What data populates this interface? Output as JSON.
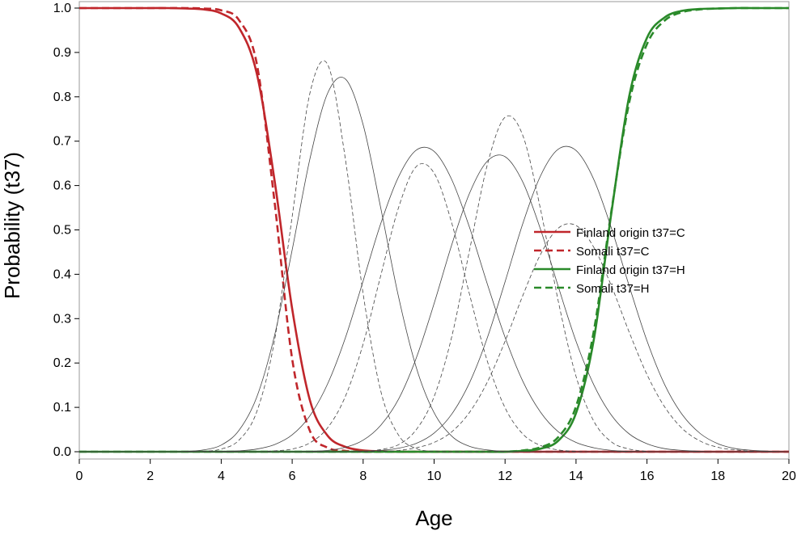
{
  "chart_data": {
    "type": "line",
    "title": "",
    "xlabel": "Age",
    "ylabel": "Probability (t37)",
    "xlim": [
      0,
      20
    ],
    "ylim": [
      0,
      1
    ],
    "xticks": [
      "0",
      "2",
      "4",
      "6",
      "8",
      "10",
      "12",
      "14",
      "16",
      "18",
      "20"
    ],
    "yticks": [
      "0.0",
      "0.1",
      "0.2",
      "0.3",
      "0.4",
      "0.5",
      "0.6",
      "0.7",
      "0.8",
      "0.9",
      "1.0"
    ],
    "grid": false,
    "legend_position": "center-right",
    "x": [
      0,
      0.5,
      1,
      1.5,
      2,
      2.5,
      3,
      3.5,
      4,
      4.5,
      5,
      5.5,
      6,
      6.5,
      7,
      7.5,
      8,
      8.5,
      9,
      9.5,
      10,
      10.5,
      11,
      11.5,
      12,
      12.5,
      13,
      13.5,
      14,
      14.5,
      15,
      15.5,
      16,
      16.5,
      17,
      17.5,
      18,
      18.5,
      19,
      19.5,
      20
    ],
    "series": [
      {
        "name": "Finland origin t37=C",
        "color": "#c0262b",
        "style": "solid",
        "weight": "bold",
        "values": [
          1.0,
          1.0,
          1.0,
          1.0,
          1.0,
          1.0,
          0.999,
          0.997,
          0.988,
          0.956,
          0.853,
          0.613,
          0.322,
          0.116,
          0.036,
          0.011,
          0.003,
          0.001,
          0.0,
          0.0,
          0.0,
          0.0,
          0.0,
          0.0,
          0.0,
          0.0,
          0.0,
          0.0,
          0.0,
          0.0,
          0.0,
          0.0,
          0.0,
          0.0,
          0.0,
          0.0,
          0.0,
          0.0,
          0.0,
          0.0,
          0.0
        ]
      },
      {
        "name": "Somali t37=C",
        "color": "#c0262b",
        "style": "dashed",
        "weight": "bold",
        "values": [
          1.0,
          1.0,
          1.0,
          1.0,
          1.0,
          1.0,
          1.0,
          0.999,
          0.995,
          0.973,
          0.875,
          0.565,
          0.209,
          0.047,
          0.009,
          0.002,
          0.0,
          0.0,
          0.0,
          0.0,
          0.0,
          0.0,
          0.0,
          0.0,
          0.0,
          0.0,
          0.0,
          0.0,
          0.0,
          0.0,
          0.0,
          0.0,
          0.0,
          0.0,
          0.0,
          0.0,
          0.0,
          0.0,
          0.0,
          0.0,
          0.0
        ]
      },
      {
        "name": "Finland origin t37=H",
        "color": "#2a8a2a",
        "style": "solid",
        "weight": "bold",
        "values": [
          0.0,
          0.0,
          0.0,
          0.0,
          0.0,
          0.0,
          0.0,
          0.0,
          0.0,
          0.0,
          0.0,
          0.0,
          0.0,
          0.0,
          0.0,
          0.0,
          0.0,
          0.0,
          0.0,
          0.0,
          0.0,
          0.0,
          0.0,
          0.0,
          0.0,
          0.002,
          0.007,
          0.025,
          0.087,
          0.252,
          0.541,
          0.802,
          0.933,
          0.979,
          0.994,
          0.998,
          0.999,
          1.0,
          1.0,
          1.0,
          1.0
        ]
      },
      {
        "name": "Somali t37=H",
        "color": "#2a8a2a",
        "style": "dashed",
        "weight": "bold",
        "values": [
          0.0,
          0.0,
          0.0,
          0.0,
          0.0,
          0.0,
          0.0,
          0.0,
          0.0,
          0.0,
          0.0,
          0.0,
          0.0,
          0.0,
          0.0,
          0.0,
          0.0,
          0.0,
          0.0,
          0.0,
          0.0,
          0.0,
          0.0,
          0.0,
          0.0,
          0.003,
          0.01,
          0.033,
          0.102,
          0.271,
          0.545,
          0.788,
          0.919,
          0.972,
          0.991,
          0.997,
          0.999,
          1.0,
          1.0,
          1.0,
          1.0
        ]
      },
      {
        "color": "#444444",
        "style": "solid",
        "weight": "thin",
        "values": [
          0.0,
          0.0,
          0.0,
          0.0,
          0.0,
          0.0,
          0.001,
          0.004,
          0.015,
          0.048,
          0.123,
          0.261,
          0.455,
          0.66,
          0.808,
          0.84,
          0.737,
          0.548,
          0.348,
          0.189,
          0.088,
          0.035,
          0.012,
          0.004,
          0.001,
          0.0,
          0.0,
          0.0,
          0.0,
          0.0,
          0.0,
          0.0,
          0.0,
          0.0,
          0.0,
          0.0,
          0.0,
          0.0,
          0.0,
          0.0,
          0.0
        ]
      },
      {
        "color": "#444444",
        "style": "dashed",
        "weight": "thin",
        "values": [
          0.0,
          0.0,
          0.0,
          0.0,
          0.0,
          0.0,
          0.0,
          0.001,
          0.006,
          0.026,
          0.09,
          0.25,
          0.53,
          0.808,
          0.873,
          0.659,
          0.356,
          0.136,
          0.037,
          0.007,
          0.001,
          0.0,
          0.0,
          0.0,
          0.0,
          0.0,
          0.0,
          0.0,
          0.0,
          0.0,
          0.0,
          0.0,
          0.0,
          0.0,
          0.0,
          0.0,
          0.0,
          0.0,
          0.0,
          0.0,
          0.0
        ]
      },
      {
        "color": "#444444",
        "style": "solid",
        "weight": "thin",
        "values": [
          0.0,
          0.0,
          0.0,
          0.0,
          0.0,
          0.0,
          0.0,
          0.0,
          0.001,
          0.002,
          0.006,
          0.016,
          0.038,
          0.081,
          0.153,
          0.257,
          0.385,
          0.515,
          0.62,
          0.68,
          0.677,
          0.613,
          0.505,
          0.378,
          0.258,
          0.159,
          0.089,
          0.045,
          0.021,
          0.009,
          0.003,
          0.001,
          0.0,
          0.0,
          0.0,
          0.0,
          0.0,
          0.0,
          0.0,
          0.0,
          0.0
        ]
      },
      {
        "color": "#444444",
        "style": "dashed",
        "weight": "thin",
        "values": [
          0.0,
          0.0,
          0.0,
          0.0,
          0.0,
          0.0,
          0.0,
          0.0,
          0.0,
          0.0,
          0.0,
          0.002,
          0.006,
          0.02,
          0.054,
          0.125,
          0.243,
          0.398,
          0.551,
          0.643,
          0.628,
          0.515,
          0.354,
          0.204,
          0.099,
          0.04,
          0.014,
          0.004,
          0.001,
          0.0,
          0.0,
          0.0,
          0.0,
          0.0,
          0.0,
          0.0,
          0.0,
          0.0,
          0.0,
          0.0,
          0.0
        ]
      },
      {
        "color": "#444444",
        "style": "solid",
        "weight": "thin",
        "values": [
          0.0,
          0.0,
          0.0,
          0.0,
          0.0,
          0.0,
          0.0,
          0.0,
          0.0,
          0.0,
          0.0,
          0.0,
          0.0,
          0.001,
          0.003,
          0.01,
          0.026,
          0.06,
          0.119,
          0.212,
          0.334,
          0.467,
          0.583,
          0.655,
          0.665,
          0.608,
          0.501,
          0.372,
          0.249,
          0.151,
          0.082,
          0.04,
          0.018,
          0.007,
          0.003,
          0.001,
          0.0,
          0.0,
          0.0,
          0.0,
          0.0
        ]
      },
      {
        "color": "#444444",
        "style": "dashed",
        "weight": "thin",
        "values": [
          0.0,
          0.0,
          0.0,
          0.0,
          0.0,
          0.0,
          0.0,
          0.0,
          0.0,
          0.0,
          0.0,
          0.0,
          0.0,
          0.0,
          0.0,
          0.0,
          0.001,
          0.005,
          0.016,
          0.05,
          0.124,
          0.26,
          0.455,
          0.647,
          0.754,
          0.713,
          0.546,
          0.339,
          0.17,
          0.069,
          0.022,
          0.006,
          0.001,
          0.0,
          0.0,
          0.0,
          0.0,
          0.0,
          0.0,
          0.0,
          0.0
        ]
      },
      {
        "color": "#444444",
        "style": "solid",
        "weight": "thin",
        "values": [
          0.0,
          0.0,
          0.0,
          0.0,
          0.0,
          0.0,
          0.0,
          0.0,
          0.0,
          0.0,
          0.0,
          0.0,
          0.0,
          0.0,
          0.0,
          0.0,
          0.001,
          0.003,
          0.008,
          0.019,
          0.042,
          0.085,
          0.156,
          0.257,
          0.383,
          0.514,
          0.622,
          0.682,
          0.679,
          0.614,
          0.503,
          0.373,
          0.25,
          0.151,
          0.083,
          0.041,
          0.018,
          0.007,
          0.003,
          0.001,
          0.0
        ]
      },
      {
        "color": "#444444",
        "style": "dashed",
        "weight": "thin",
        "values": [
          0.0,
          0.0,
          0.0,
          0.0,
          0.0,
          0.0,
          0.0,
          0.0,
          0.0,
          0.0,
          0.0,
          0.0,
          0.0,
          0.0,
          0.0,
          0.0,
          0.0,
          0.001,
          0.003,
          0.009,
          0.021,
          0.045,
          0.089,
          0.157,
          0.249,
          0.352,
          0.445,
          0.504,
          0.51,
          0.461,
          0.373,
          0.269,
          0.174,
          0.101,
          0.052,
          0.024,
          0.01,
          0.004,
          0.001,
          0.0,
          0.0
        ]
      }
    ]
  }
}
